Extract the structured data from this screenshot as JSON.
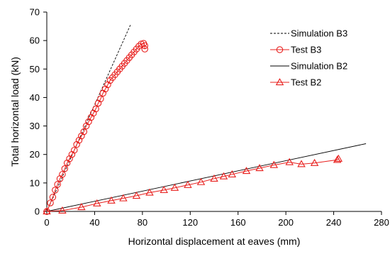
{
  "chart_data": {
    "type": "line",
    "title": "",
    "xlabel": "Horizontal displacement at eaves (mm)",
    "ylabel": "Total horizontal load (kN)",
    "xlim": [
      0,
      280
    ],
    "ylim": [
      0,
      70
    ],
    "xticks": [
      0,
      40,
      80,
      120,
      160,
      200,
      240,
      280
    ],
    "yticks": [
      0,
      10,
      20,
      30,
      40,
      50,
      60,
      70
    ],
    "xtick_labels": [
      "0",
      "40",
      "80",
      "120",
      "160",
      "200",
      "240",
      "280"
    ],
    "ytick_labels": [
      "0",
      "10",
      "20",
      "30",
      "40",
      "50",
      "60",
      "70"
    ],
    "grid": false,
    "legend_position": "top-right",
    "series": [
      {
        "name": "Simulation B3",
        "style": "dashed",
        "color": "#000000",
        "marker": "none",
        "x": [
          0,
          70
        ],
        "y": [
          0,
          65.5
        ]
      },
      {
        "name": "Test B3",
        "style": "solid",
        "color": "#e8201e",
        "marker": "circle",
        "x": [
          0,
          3,
          5,
          7,
          9,
          11,
          13,
          15,
          17,
          19,
          21,
          23,
          25,
          27,
          29,
          31,
          33,
          35,
          37,
          39,
          41,
          43,
          45,
          47,
          49,
          51,
          53,
          55,
          57,
          59,
          61,
          63,
          65,
          67,
          69,
          71,
          73,
          75,
          77,
          79,
          81,
          82,
          82
        ],
        "y": [
          0,
          3,
          5,
          7.5,
          9.5,
          11.5,
          13,
          15,
          17,
          18.5,
          20,
          21.5,
          23.5,
          25,
          26.5,
          28,
          30,
          31.5,
          33,
          34.5,
          36,
          38,
          39.5,
          41.5,
          43,
          44.5,
          46,
          47,
          48,
          49,
          50,
          51,
          52,
          53,
          54,
          55,
          56,
          57,
          58,
          58.8,
          59,
          58.2,
          57
        ]
      },
      {
        "name": "Simulation B2",
        "style": "solid",
        "color": "#000000",
        "marker": "none",
        "x": [
          0,
          267
        ],
        "y": [
          0,
          23.8
        ]
      },
      {
        "name": "Test B2",
        "style": "solid",
        "color": "#e8201e",
        "marker": "triangle",
        "x": [
          0,
          13,
          29,
          42,
          54,
          64,
          75,
          86,
          98,
          107,
          118,
          129,
          140,
          148,
          155,
          167,
          178,
          190,
          203,
          213,
          224,
          243,
          244
        ],
        "y": [
          0,
          0.3,
          1.5,
          2.8,
          3.8,
          4.6,
          5.5,
          6.6,
          7.5,
          8.3,
          9.3,
          10.3,
          11.5,
          12.3,
          13,
          14.2,
          15.2,
          16.3,
          17.3,
          16.6,
          17,
          18.1,
          18.5
        ]
      }
    ]
  }
}
